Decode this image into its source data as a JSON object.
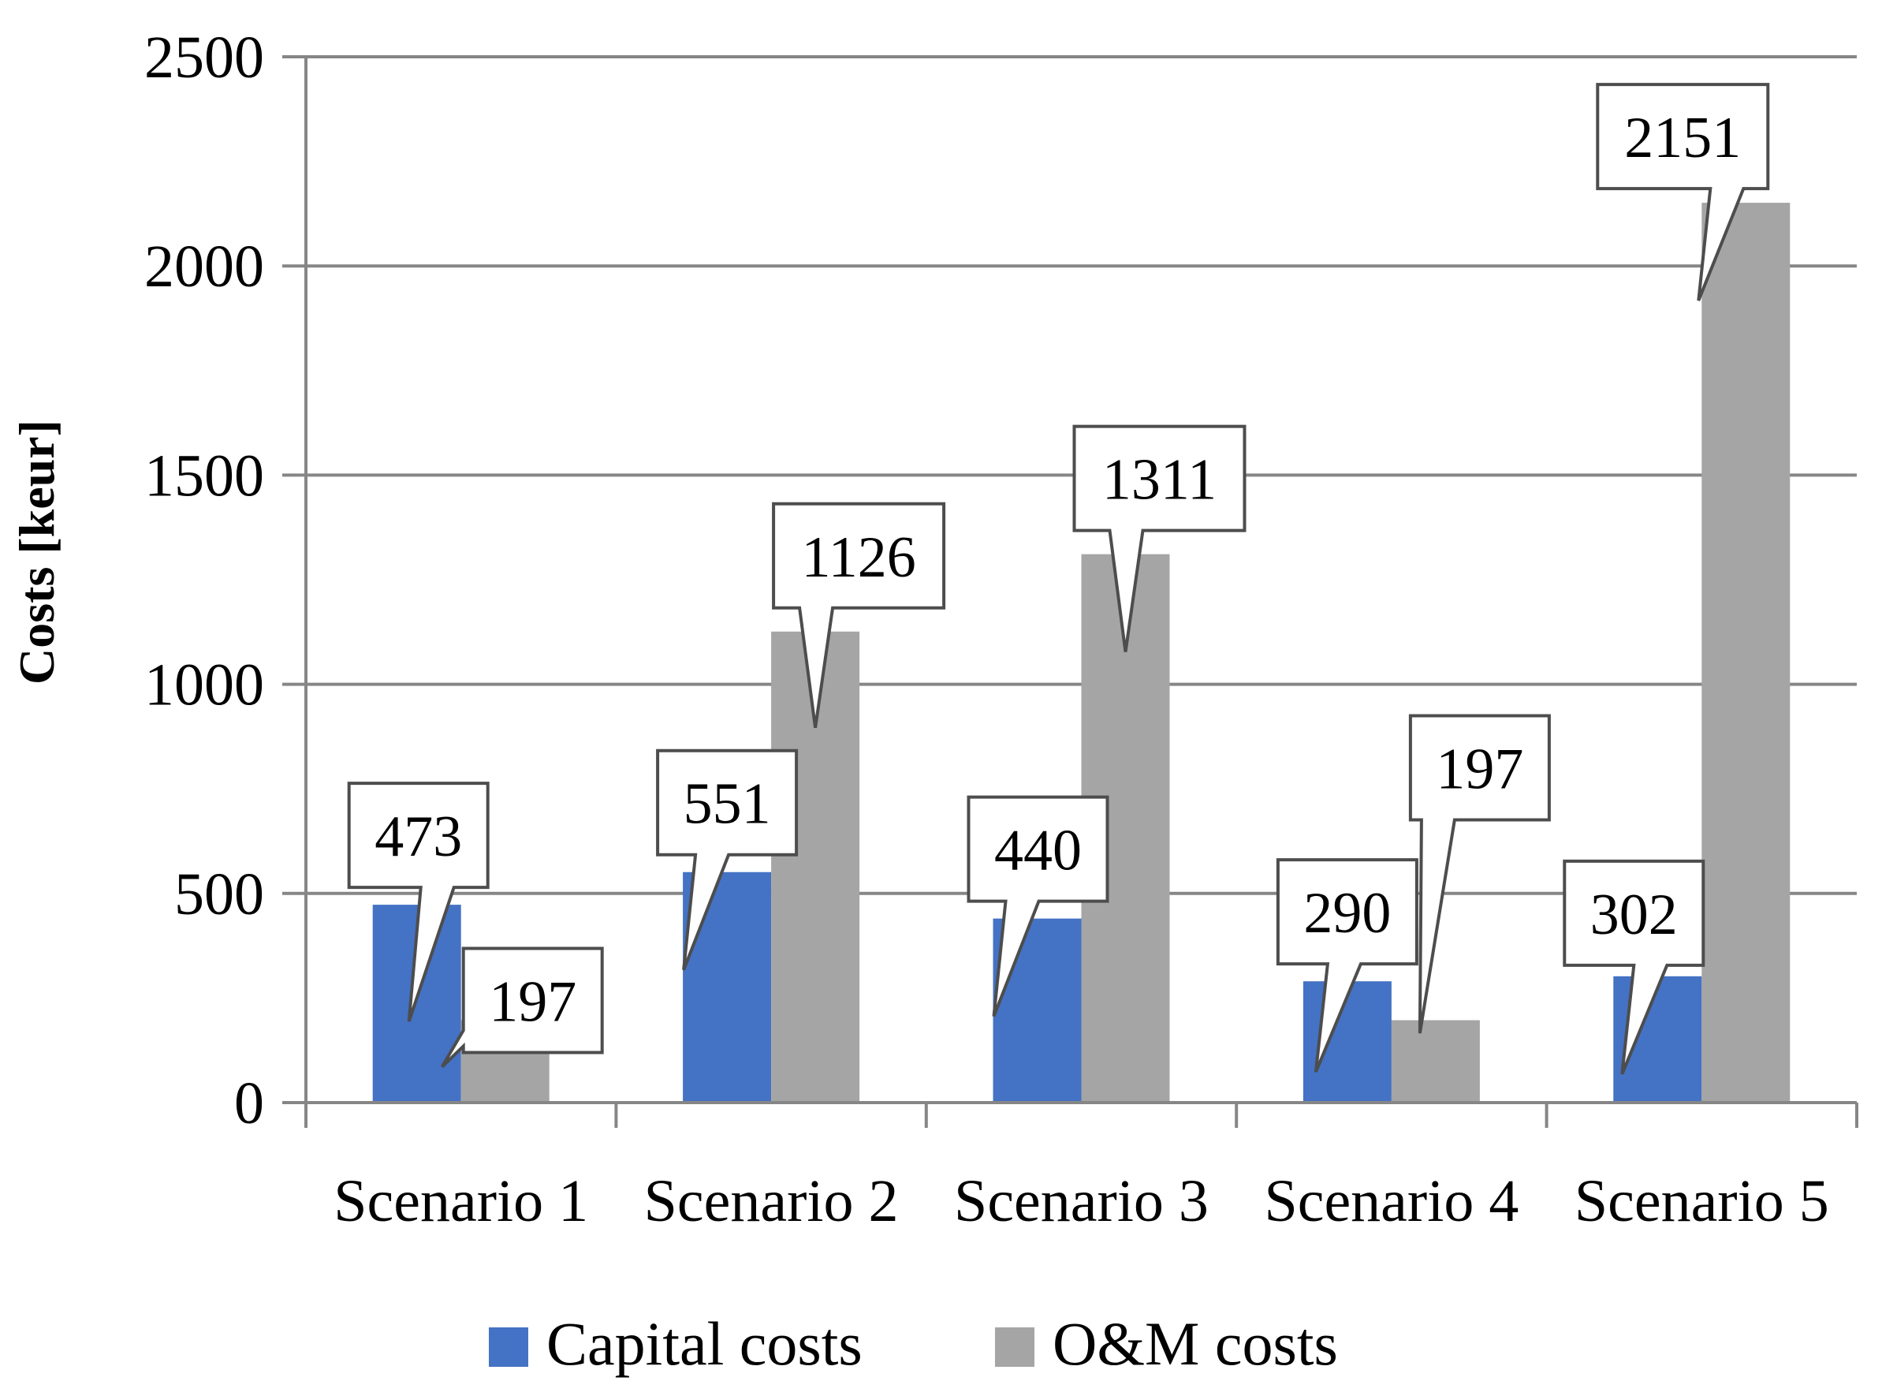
{
  "chart_data": {
    "type": "bar",
    "title": "",
    "xlabel": "",
    "ylabel": "Costs [keur]",
    "ylim": [
      0,
      2500
    ],
    "yticks": [
      0,
      500,
      1000,
      1500,
      2000,
      2500
    ],
    "grid": true,
    "legend_position": "bottom",
    "categories": [
      "Scenario 1",
      "Scenario 2",
      "Scenario 3",
      "Scenario 4",
      "Scenario 5"
    ],
    "series": [
      {
        "name": "Capital costs",
        "color": "#4472C4",
        "values": [
          473,
          551,
          440,
          290,
          302
        ],
        "labels": [
          "473",
          "551",
          "440",
          "290",
          "302"
        ]
      },
      {
        "name": "O&M costs",
        "color": "#A5A5A5",
        "values": [
          197,
          1126,
          1311,
          197,
          2151
        ],
        "labels": [
          "197",
          "1126",
          "1311",
          "197",
          "2151"
        ]
      }
    ]
  }
}
